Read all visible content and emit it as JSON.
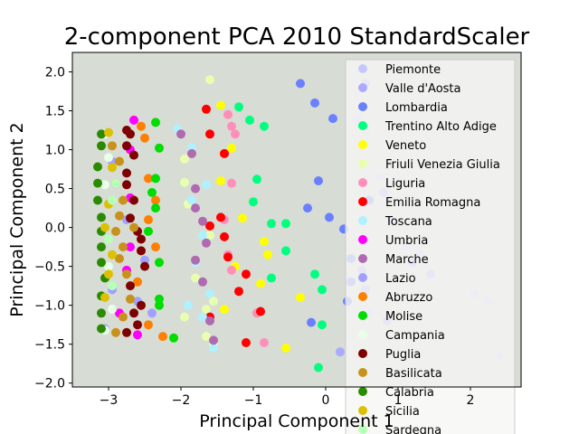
{
  "chart_data": {
    "type": "scatter",
    "title": "2-component PCA 2010 StandardScaler",
    "xlabel": "Principal Component 1",
    "ylabel": "Principal Component 2",
    "xlim": [
      -3.5,
      2.7
    ],
    "ylim": [
      -2.05,
      2.25
    ],
    "xticks": [
      -3,
      -2,
      -1,
      0,
      1,
      2
    ],
    "yticks": [
      -2.0,
      -1.5,
      -1.0,
      -0.5,
      0.0,
      0.5,
      1.0,
      1.5,
      2.0
    ],
    "plot_background": "#d7dcd5",
    "legend_location": "upper right",
    "series": [
      {
        "name": "Piemonte",
        "color": "#c6c6ff",
        "points": [
          [
            0.45,
            1.4
          ],
          [
            0.55,
            1.25
          ],
          [
            0.75,
            0.65
          ],
          [
            1.1,
            -0.25
          ],
          [
            1.3,
            -0.35
          ],
          [
            2.05,
            -0.85
          ],
          [
            2.25,
            -0.95
          ],
          [
            2.4,
            -1.65
          ],
          [
            0.6,
            -1.1
          ],
          [
            0.9,
            0.1
          ]
        ]
      },
      {
        "name": "Valle d'Aosta",
        "color": "#aaaaff",
        "points": [
          [
            0.55,
            1.85
          ],
          [
            0.5,
            -0.55
          ],
          [
            1.2,
            -0.45
          ],
          [
            1.45,
            -0.6
          ],
          [
            0.85,
            -1.2
          ],
          [
            0.2,
            -1.6
          ],
          [
            0.55,
            -0.8
          ],
          [
            0.8,
            0.45
          ]
        ]
      },
      {
        "name": "Lombardia",
        "color": "#6a80ff",
        "points": [
          [
            -0.35,
            1.85
          ],
          [
            -0.15,
            1.6
          ],
          [
            0.1,
            1.4
          ],
          [
            -0.1,
            0.6
          ],
          [
            -0.25,
            0.25
          ],
          [
            0.05,
            0.13
          ],
          [
            0.25,
            -0.02
          ],
          [
            0.35,
            -0.4
          ],
          [
            0.3,
            -0.95
          ],
          [
            -0.2,
            -1.22
          ],
          [
            0.6,
            0.35
          ],
          [
            0.35,
            -0.7
          ]
        ]
      },
      {
        "name": "Trentino Alto Adige",
        "color": "#00ff7f",
        "points": [
          [
            -1.2,
            1.55
          ],
          [
            -1.05,
            1.38
          ],
          [
            -0.85,
            1.3
          ],
          [
            -0.95,
            0.62
          ],
          [
            -1.0,
            0.33
          ],
          [
            -0.75,
            0.05
          ],
          [
            -0.55,
            0.05
          ],
          [
            -0.55,
            -0.3
          ],
          [
            -0.75,
            -0.65
          ],
          [
            -0.15,
            -0.6
          ],
          [
            -0.05,
            -0.8
          ],
          [
            -0.95,
            -1.1
          ],
          [
            -0.05,
            -1.25
          ],
          [
            -0.1,
            -1.8
          ]
        ]
      },
      {
        "name": "Veneto",
        "color": "#ffff00",
        "points": [
          [
            -1.45,
            1.57
          ],
          [
            -1.3,
            1.02
          ],
          [
            -1.45,
            0.6
          ],
          [
            -1.15,
            0.12
          ],
          [
            -0.85,
            -0.18
          ],
          [
            -0.8,
            -0.35
          ],
          [
            -0.9,
            -0.72
          ],
          [
            -0.35,
            -0.9
          ],
          [
            -1.25,
            -0.5
          ],
          [
            -0.55,
            -1.55
          ],
          [
            -1.4,
            -1.05
          ]
        ]
      },
      {
        "name": "Friuli Venezia Giulia",
        "color": "#e8ffb0",
        "points": [
          [
            -1.6,
            1.9
          ],
          [
            -1.95,
            0.88
          ],
          [
            -1.95,
            0.58
          ],
          [
            -1.9,
            0.3
          ],
          [
            -1.6,
            -0.1
          ],
          [
            -1.8,
            -0.65
          ],
          [
            -1.55,
            -0.95
          ],
          [
            -1.95,
            -1.15
          ],
          [
            -1.65,
            -1.4
          ],
          [
            -1.55,
            -1.5
          ],
          [
            -1.65,
            -1.05
          ]
        ]
      },
      {
        "name": "Liguria",
        "color": "#ff8fb8",
        "points": [
          [
            -1.35,
            1.45
          ],
          [
            -1.3,
            1.3
          ],
          [
            -1.25,
            1.2
          ],
          [
            -1.4,
            0.95
          ],
          [
            -1.3,
            0.57
          ],
          [
            -1.4,
            0.1
          ],
          [
            -1.35,
            -0.35
          ],
          [
            -1.3,
            -0.55
          ],
          [
            -0.95,
            -1.1
          ],
          [
            -0.85,
            -1.48
          ]
        ]
      },
      {
        "name": "Emilia Romagna",
        "color": "#ff0000",
        "points": [
          [
            -1.65,
            1.52
          ],
          [
            -1.6,
            1.2
          ],
          [
            -1.4,
            0.95
          ],
          [
            -1.45,
            0.13
          ],
          [
            -1.6,
            0.02
          ],
          [
            -1.4,
            -0.12
          ],
          [
            -1.35,
            -0.38
          ],
          [
            -1.1,
            -0.6
          ],
          [
            -1.2,
            -0.82
          ],
          [
            -1.6,
            -1.15
          ],
          [
            -1.1,
            -1.48
          ],
          [
            -0.9,
            -1.08
          ]
        ]
      },
      {
        "name": "Toscana",
        "color": "#b0f0ff",
        "points": [
          [
            -2.05,
            1.27
          ],
          [
            -1.85,
            1.03
          ],
          [
            -1.85,
            0.35
          ],
          [
            -1.65,
            0.55
          ],
          [
            -1.7,
            -0.1
          ],
          [
            -1.8,
            -0.45
          ],
          [
            -1.6,
            -0.85
          ],
          [
            -1.9,
            -1.0
          ],
          [
            -1.7,
            -1.15
          ],
          [
            -1.55,
            -1.55
          ]
        ]
      },
      {
        "name": "Umbria",
        "color": "#ff00ff",
        "points": [
          [
            -2.65,
            1.38
          ],
          [
            -2.7,
            0.38
          ],
          [
            -2.7,
            -0.25
          ],
          [
            -2.85,
            -1.1
          ],
          [
            -2.6,
            -1.38
          ],
          [
            -2.7,
            1.0
          ],
          [
            -2.75,
            -0.55
          ]
        ]
      },
      {
        "name": "Marche",
        "color": "#b06ab0",
        "points": [
          [
            -2.0,
            1.2
          ],
          [
            -1.85,
            0.95
          ],
          [
            -1.8,
            0.5
          ],
          [
            -1.8,
            0.25
          ],
          [
            -1.7,
            0.08
          ],
          [
            -1.65,
            -0.2
          ],
          [
            -1.8,
            -0.42
          ],
          [
            -1.7,
            -0.7
          ],
          [
            -1.55,
            -1.45
          ],
          [
            -1.6,
            -1.2
          ]
        ]
      },
      {
        "name": "Lazio",
        "color": "#a0a0ff",
        "points": [
          [
            -2.95,
            0.85
          ],
          [
            -2.5,
            -0.42
          ],
          [
            -2.6,
            -0.95
          ],
          [
            -2.4,
            -1.1
          ],
          [
            -3.05,
            -1.3
          ],
          [
            -2.75,
            0.1
          ],
          [
            -2.95,
            -0.8
          ]
        ]
      },
      {
        "name": "Abruzzo",
        "color": "#ff7f00",
        "points": [
          [
            -2.5,
            1.15
          ],
          [
            -2.45,
            0.63
          ],
          [
            -2.35,
            0.35
          ],
          [
            -2.45,
            0.1
          ],
          [
            -2.35,
            -0.25
          ],
          [
            -2.25,
            -1.4
          ],
          [
            -2.55,
            1.3
          ],
          [
            -2.6,
            -0.7
          ],
          [
            -2.45,
            -1.25
          ]
        ]
      },
      {
        "name": "Molise",
        "color": "#00dd00",
        "points": [
          [
            -2.35,
            1.35
          ],
          [
            -2.35,
            0.63
          ],
          [
            -2.4,
            0.45
          ],
          [
            -2.35,
            0.25
          ],
          [
            -2.45,
            -0.05
          ],
          [
            -2.3,
            -0.45
          ],
          [
            -2.3,
            -0.92
          ],
          [
            -2.3,
            -1.0
          ],
          [
            -2.1,
            -1.42
          ],
          [
            -2.3,
            1.02
          ]
        ]
      },
      {
        "name": "Campania",
        "color": "#e8ffe8",
        "points": [
          [
            -3.05,
            1.2
          ],
          [
            -3.0,
            0.9
          ],
          [
            -3.05,
            0.55
          ],
          [
            -3.0,
            -0.5
          ],
          [
            -2.95,
            -1.05
          ],
          [
            -3.05,
            -1.32
          ]
        ]
      },
      {
        "name": "Puglia",
        "color": "#7f0000",
        "points": [
          [
            -2.75,
            1.25
          ],
          [
            -2.7,
            1.2
          ],
          [
            -2.75,
            1.05
          ],
          [
            -2.65,
            0.93
          ],
          [
            -2.75,
            0.7
          ],
          [
            -2.75,
            0.55
          ],
          [
            -2.65,
            0.35
          ],
          [
            -2.7,
            0.12
          ],
          [
            -2.6,
            -0.05
          ],
          [
            -2.55,
            -0.15
          ],
          [
            -2.55,
            -0.3
          ],
          [
            -2.5,
            -0.5
          ],
          [
            -2.7,
            -0.75
          ],
          [
            -2.55,
            -1.0
          ],
          [
            -2.65,
            -1.1
          ],
          [
            -2.6,
            -1.25
          ],
          [
            -2.75,
            -1.35
          ]
        ]
      },
      {
        "name": "Basilicata",
        "color": "#c8921a",
        "points": [
          [
            -2.95,
            1.05
          ],
          [
            -2.85,
            0.85
          ],
          [
            -2.9,
            0.57
          ],
          [
            -2.8,
            0.35
          ],
          [
            -2.85,
            0.15
          ],
          [
            -2.9,
            -0.05
          ],
          [
            -2.8,
            -0.25
          ],
          [
            -2.85,
            -0.4
          ],
          [
            -2.75,
            -0.6
          ],
          [
            -2.7,
            -0.92
          ],
          [
            -2.8,
            -1.15
          ],
          [
            -2.9,
            -1.35
          ],
          [
            -2.65,
            0.0
          ]
        ]
      },
      {
        "name": "Calabria",
        "color": "#2a8b00",
        "points": [
          [
            -3.1,
            1.2
          ],
          [
            -3.1,
            1.05
          ],
          [
            -3.15,
            0.78
          ],
          [
            -3.15,
            0.57
          ],
          [
            -3.15,
            0.35
          ],
          [
            -3.1,
            0.13
          ],
          [
            -3.1,
            -0.05
          ],
          [
            -3.1,
            -0.25
          ],
          [
            -3.1,
            -0.45
          ],
          [
            -3.05,
            -0.65
          ],
          [
            -3.1,
            -0.88
          ],
          [
            -3.1,
            -1.1
          ],
          [
            -3.1,
            -1.3
          ]
        ]
      },
      {
        "name": "Sicilia",
        "color": "#ddc000",
        "points": [
          [
            -3.0,
            1.22
          ],
          [
            -2.95,
            0.77
          ],
          [
            -3.0,
            0.3
          ],
          [
            -3.05,
            0.0
          ],
          [
            -2.95,
            -0.35
          ],
          [
            -3.0,
            -0.6
          ],
          [
            -3.05,
            -0.9
          ]
        ]
      },
      {
        "name": "Sardegna",
        "color": "#b8ffb8",
        "points": [
          [
            -2.95,
            0.35
          ],
          [
            -3.0,
            -0.15
          ],
          [
            -2.95,
            -0.75
          ],
          [
            -2.9,
            0.57
          ]
        ]
      }
    ]
  }
}
